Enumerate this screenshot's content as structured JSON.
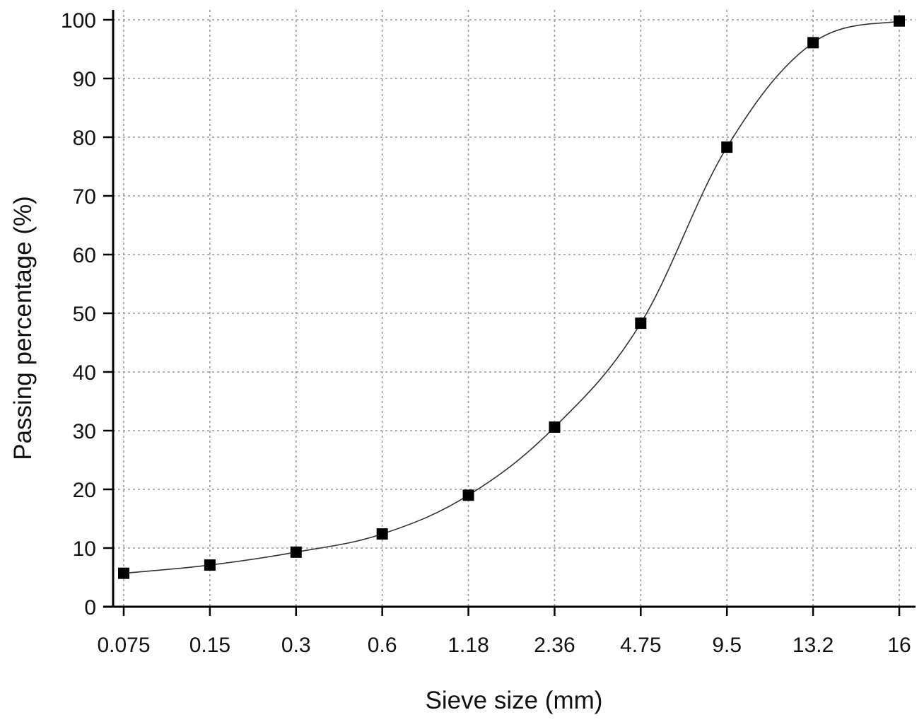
{
  "chart_data": {
    "type": "line",
    "title": "",
    "xlabel": "Sieve size (mm)",
    "ylabel": "Passing percentage (%)",
    "x_scale": "categorical",
    "categories": [
      "0.075",
      "0.15",
      "0.3",
      "0.6",
      "1.18",
      "2.36",
      "4.75",
      "9.5",
      "13.2",
      "16"
    ],
    "ylim": [
      0,
      100
    ],
    "y_ticks": [
      0,
      10,
      20,
      30,
      40,
      50,
      60,
      70,
      80,
      90,
      100
    ],
    "grid": true,
    "legend": "none",
    "series": [
      {
        "values": [
          5.7,
          7.1,
          9.3,
          12.4,
          19.0,
          30.6,
          48.3,
          78.3,
          96.1,
          99.8
        ],
        "marker": "square",
        "color": "#000000",
        "line_color": "#333333"
      }
    ]
  }
}
